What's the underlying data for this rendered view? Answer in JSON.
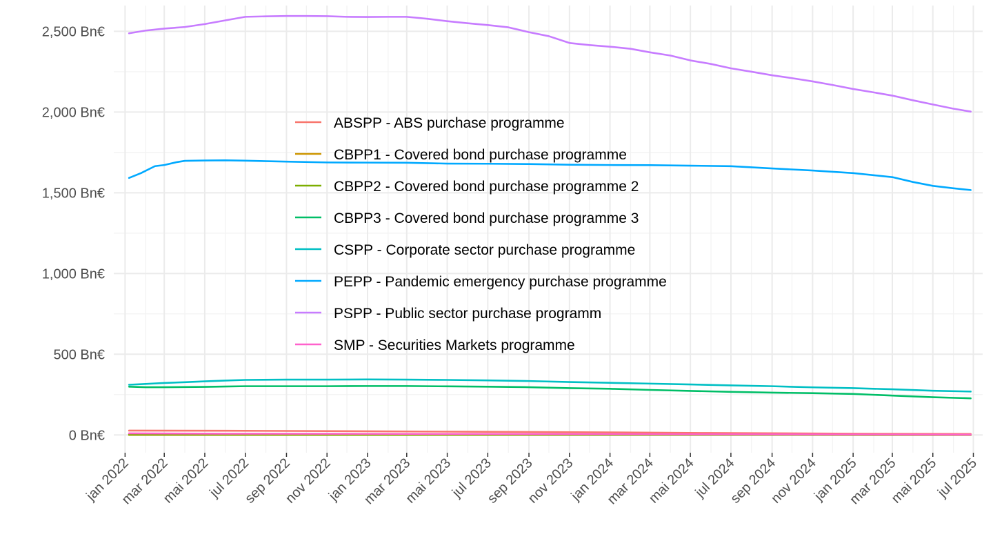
{
  "chart_data": {
    "type": "line",
    "title": "",
    "xlabel": "",
    "ylabel": "",
    "ylim": [
      -110,
      2660
    ],
    "xlim": [
      "2021-12-15",
      "2025-07-15"
    ],
    "y_ticks": [
      {
        "value": 0,
        "label": "0 Bn€"
      },
      {
        "value": 500,
        "label": "500 Bn€"
      },
      {
        "value": 1000,
        "label": "1,000 Bn€"
      },
      {
        "value": 1500,
        "label": "1,500 Bn€"
      },
      {
        "value": 2000,
        "label": "2,000 Bn€"
      },
      {
        "value": 2500,
        "label": "2,500 Bn€"
      }
    ],
    "x_ticks": [
      {
        "date": "2022-01-01",
        "label": "jan 2022"
      },
      {
        "date": "2022-03-01",
        "label": "mar 2022"
      },
      {
        "date": "2022-05-01",
        "label": "mai 2022"
      },
      {
        "date": "2022-07-01",
        "label": "jul 2022"
      },
      {
        "date": "2022-09-01",
        "label": "sep 2022"
      },
      {
        "date": "2022-11-01",
        "label": "nov 2022"
      },
      {
        "date": "2023-01-01",
        "label": "jan 2023"
      },
      {
        "date": "2023-03-01",
        "label": "mar 2023"
      },
      {
        "date": "2023-05-01",
        "label": "mai 2023"
      },
      {
        "date": "2023-07-01",
        "label": "jul 2023"
      },
      {
        "date": "2023-09-01",
        "label": "sep 2023"
      },
      {
        "date": "2023-11-01",
        "label": "nov 2023"
      },
      {
        "date": "2024-01-01",
        "label": "jan 2024"
      },
      {
        "date": "2024-03-01",
        "label": "mar 2024"
      },
      {
        "date": "2024-05-01",
        "label": "mai 2024"
      },
      {
        "date": "2024-07-01",
        "label": "jul 2024"
      },
      {
        "date": "2024-09-01",
        "label": "sep 2024"
      },
      {
        "date": "2024-11-01",
        "label": "nov 2024"
      },
      {
        "date": "2025-01-01",
        "label": "jan 2025"
      },
      {
        "date": "2025-03-01",
        "label": "mar 2025"
      },
      {
        "date": "2025-05-01",
        "label": "mai 2025"
      },
      {
        "date": "2025-07-01",
        "label": "jul 2025"
      }
    ],
    "x_minor_ticks": [
      "2022-02-01",
      "2022-04-01",
      "2022-06-01",
      "2022-08-01",
      "2022-10-01",
      "2022-12-01",
      "2023-02-01",
      "2023-04-01",
      "2023-06-01",
      "2023-08-01",
      "2023-10-01",
      "2023-12-01",
      "2024-02-01",
      "2024-04-01",
      "2024-06-01",
      "2024-08-01",
      "2024-10-01",
      "2024-12-01",
      "2025-02-01",
      "2025-04-01",
      "2025-06-01"
    ],
    "y_minor_ticks": [
      250,
      750,
      1250,
      1750,
      2250
    ],
    "grid": true,
    "legend_position": "inside-center",
    "series": [
      {
        "name": "ABSPP - ABS purchase programme",
        "color": "#F8766D",
        "points": [
          [
            "2022-01-07",
            27
          ],
          [
            "2022-06-01",
            26
          ],
          [
            "2023-01-01",
            23
          ],
          [
            "2023-06-01",
            20
          ],
          [
            "2024-01-01",
            16
          ],
          [
            "2024-06-01",
            12
          ],
          [
            "2025-01-01",
            8
          ],
          [
            "2025-06-27",
            6
          ]
        ]
      },
      {
        "name": "CBPP1 - Covered bond purchase programme",
        "color": "#CD9600",
        "points": [
          [
            "2022-01-07",
            0.3
          ],
          [
            "2022-06-01",
            0.2
          ],
          [
            "2023-01-01",
            0.1
          ],
          [
            "2025-06-27",
            0
          ]
        ]
      },
      {
        "name": "CBPP2 - Covered bond purchase programme 2",
        "color": "#7CAE00",
        "points": [
          [
            "2022-01-07",
            2
          ],
          [
            "2022-06-01",
            1.5
          ],
          [
            "2023-01-01",
            1
          ],
          [
            "2024-01-01",
            0.5
          ],
          [
            "2025-06-27",
            0.2
          ]
        ]
      },
      {
        "name": "CBPP3 - Covered bond purchase programme 3",
        "color": "#00BE67",
        "points": [
          [
            "2022-01-07",
            299
          ],
          [
            "2022-02-01",
            296
          ],
          [
            "2022-03-01",
            296
          ],
          [
            "2022-04-01",
            297
          ],
          [
            "2022-05-01",
            298
          ],
          [
            "2022-06-01",
            300
          ],
          [
            "2022-07-01",
            302
          ],
          [
            "2022-09-01",
            302
          ],
          [
            "2022-11-01",
            302
          ],
          [
            "2023-01-01",
            303
          ],
          [
            "2023-03-01",
            303
          ],
          [
            "2023-05-01",
            301
          ],
          [
            "2023-07-01",
            299
          ],
          [
            "2023-09-01",
            296
          ],
          [
            "2023-11-01",
            290
          ],
          [
            "2024-01-01",
            286
          ],
          [
            "2024-03-01",
            279
          ],
          [
            "2024-05-01",
            273
          ],
          [
            "2024-07-01",
            267
          ],
          [
            "2024-09-01",
            262
          ],
          [
            "2024-11-01",
            259
          ],
          [
            "2025-01-01",
            254
          ],
          [
            "2025-03-01",
            244
          ],
          [
            "2025-05-01",
            234
          ],
          [
            "2025-06-27",
            227
          ]
        ]
      },
      {
        "name": "CSPP - Corporate sector purchase programme",
        "color": "#00BFC4",
        "points": [
          [
            "2022-01-07",
            311
          ],
          [
            "2022-02-01",
            316
          ],
          [
            "2022-03-01",
            322
          ],
          [
            "2022-04-01",
            327
          ],
          [
            "2022-05-01",
            332
          ],
          [
            "2022-06-01",
            337
          ],
          [
            "2022-07-01",
            341
          ],
          [
            "2022-09-01",
            343
          ],
          [
            "2022-11-01",
            343
          ],
          [
            "2023-01-01",
            344
          ],
          [
            "2023-03-01",
            343
          ],
          [
            "2023-05-01",
            341
          ],
          [
            "2023-07-01",
            338
          ],
          [
            "2023-09-01",
            334
          ],
          [
            "2023-11-01",
            328
          ],
          [
            "2024-01-01",
            323
          ],
          [
            "2024-03-01",
            318
          ],
          [
            "2024-05-01",
            313
          ],
          [
            "2024-07-01",
            307
          ],
          [
            "2024-09-01",
            302
          ],
          [
            "2024-11-01",
            295
          ],
          [
            "2025-01-01",
            290
          ],
          [
            "2025-03-01",
            283
          ],
          [
            "2025-05-01",
            274
          ],
          [
            "2025-06-27",
            269
          ]
        ]
      },
      {
        "name": "PEPP - Pandemic emergency purchase programme",
        "color": "#00A9FF",
        "points": [
          [
            "2022-01-07",
            1592
          ],
          [
            "2022-01-25",
            1622
          ],
          [
            "2022-02-15",
            1665
          ],
          [
            "2022-03-01",
            1672
          ],
          [
            "2022-03-20",
            1690
          ],
          [
            "2022-04-01",
            1698
          ],
          [
            "2022-05-01",
            1700
          ],
          [
            "2022-06-01",
            1701
          ],
          [
            "2022-07-01",
            1699
          ],
          [
            "2022-09-01",
            1693
          ],
          [
            "2022-11-01",
            1688
          ],
          [
            "2023-01-01",
            1687
          ],
          [
            "2023-03-01",
            1686
          ],
          [
            "2023-05-01",
            1681
          ],
          [
            "2023-07-01",
            1680
          ],
          [
            "2023-09-01",
            1678
          ],
          [
            "2023-11-01",
            1674
          ],
          [
            "2024-01-01",
            1672
          ],
          [
            "2024-03-01",
            1671
          ],
          [
            "2024-05-01",
            1668
          ],
          [
            "2024-07-01",
            1665
          ],
          [
            "2024-09-01",
            1651
          ],
          [
            "2024-11-01",
            1638
          ],
          [
            "2025-01-01",
            1622
          ],
          [
            "2025-03-01",
            1597
          ],
          [
            "2025-04-01",
            1567
          ],
          [
            "2025-05-01",
            1543
          ],
          [
            "2025-06-01",
            1528
          ],
          [
            "2025-06-27",
            1517
          ]
        ]
      },
      {
        "name": "PSPP - Public sector purchase programm",
        "color": "#C77CFF",
        "points": [
          [
            "2022-01-07",
            2488
          ],
          [
            "2022-02-01",
            2505
          ],
          [
            "2022-03-01",
            2517
          ],
          [
            "2022-04-01",
            2527
          ],
          [
            "2022-05-01",
            2545
          ],
          [
            "2022-06-01",
            2568
          ],
          [
            "2022-07-01",
            2590
          ],
          [
            "2022-08-01",
            2593
          ],
          [
            "2022-09-01",
            2595
          ],
          [
            "2022-10-01",
            2595
          ],
          [
            "2022-11-01",
            2594
          ],
          [
            "2022-12-01",
            2590
          ],
          [
            "2023-01-01",
            2589
          ],
          [
            "2023-02-01",
            2590
          ],
          [
            "2023-03-01",
            2590
          ],
          [
            "2023-04-01",
            2578
          ],
          [
            "2023-05-01",
            2563
          ],
          [
            "2023-06-01",
            2550
          ],
          [
            "2023-07-01",
            2539
          ],
          [
            "2023-08-01",
            2525
          ],
          [
            "2023-09-01",
            2495
          ],
          [
            "2023-10-01",
            2470
          ],
          [
            "2023-11-01",
            2428
          ],
          [
            "2023-12-01",
            2415
          ],
          [
            "2024-01-01",
            2405
          ],
          [
            "2024-02-01",
            2392
          ],
          [
            "2024-03-01",
            2370
          ],
          [
            "2024-04-01",
            2350
          ],
          [
            "2024-05-01",
            2320
          ],
          [
            "2024-06-01",
            2298
          ],
          [
            "2024-07-01",
            2271
          ],
          [
            "2024-08-01",
            2250
          ],
          [
            "2024-09-01",
            2228
          ],
          [
            "2024-10-01",
            2210
          ],
          [
            "2024-11-01",
            2190
          ],
          [
            "2024-12-01",
            2168
          ],
          [
            "2025-01-01",
            2143
          ],
          [
            "2025-02-01",
            2122
          ],
          [
            "2025-03-01",
            2102
          ],
          [
            "2025-04-01",
            2073
          ],
          [
            "2025-05-01",
            2047
          ],
          [
            "2025-06-01",
            2021
          ],
          [
            "2025-06-27",
            2003
          ]
        ]
      },
      {
        "name": "SMP - Securities Markets programme",
        "color": "#FF61CC",
        "points": [
          [
            "2022-01-07",
            10
          ],
          [
            "2022-06-01",
            8
          ],
          [
            "2023-01-01",
            7
          ],
          [
            "2023-06-01",
            6
          ],
          [
            "2024-01-01",
            5
          ],
          [
            "2024-06-01",
            4
          ],
          [
            "2025-01-01",
            3
          ],
          [
            "2025-06-27",
            2
          ]
        ]
      }
    ]
  }
}
